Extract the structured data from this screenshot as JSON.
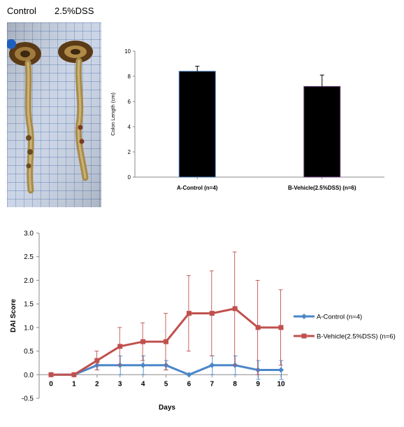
{
  "photo": {
    "labels": [
      "Control",
      "2.5%DSS"
    ]
  },
  "chart_data": [
    {
      "type": "bar",
      "title": "",
      "xlabel": "",
      "ylabel": "Colon Length (cm)",
      "categories": [
        "A-Control (n=4)",
        "B-Vehicle(2.5%DSS) (n=6)"
      ],
      "values": [
        8.4,
        7.2
      ],
      "errors": [
        0.4,
        0.9
      ],
      "ylim": [
        0,
        10
      ],
      "yticks": [
        0,
        2,
        4,
        6,
        8,
        10
      ],
      "bar_color": "#000000",
      "bar_edge_colors": [
        "#4a7ebb",
        "#7b4a8c"
      ],
      "grid": false
    },
    {
      "type": "line",
      "title": "",
      "xlabel": "Days",
      "ylabel": "DAI Score",
      "x": [
        0,
        1,
        2,
        3,
        4,
        5,
        6,
        7,
        8,
        9,
        10
      ],
      "ylim": [
        -0.5,
        3.0
      ],
      "yticks": [
        "-0.5",
        "0.0",
        "0.5",
        "1.0",
        "1.5",
        "2.0",
        "2.5",
        "3.0"
      ],
      "legend_position": "right",
      "grid": false,
      "series": [
        {
          "name": "A-Control (n=4)",
          "color": "#4a86c8",
          "marker": "diamond",
          "values": [
            0,
            0,
            0.2,
            0.2,
            0.2,
            0.2,
            0,
            0.2,
            0.2,
            0.1,
            0.1
          ],
          "errors": [
            0,
            0,
            0.1,
            0.2,
            0.2,
            0.1,
            0,
            0.2,
            0.2,
            0.2,
            0.2
          ]
        },
        {
          "name": "B-Vehicle(2.5%DSS) (n=6)",
          "color": "#c0504d",
          "marker": "square",
          "values": [
            0,
            0,
            0.3,
            0.6,
            0.7,
            0.7,
            1.3,
            1.3,
            1.4,
            1.0,
            1.0
          ],
          "errors": [
            0,
            0,
            0.2,
            0.4,
            0.4,
            0.6,
            0.8,
            0.9,
            1.2,
            1.0,
            0.8
          ]
        }
      ]
    }
  ]
}
